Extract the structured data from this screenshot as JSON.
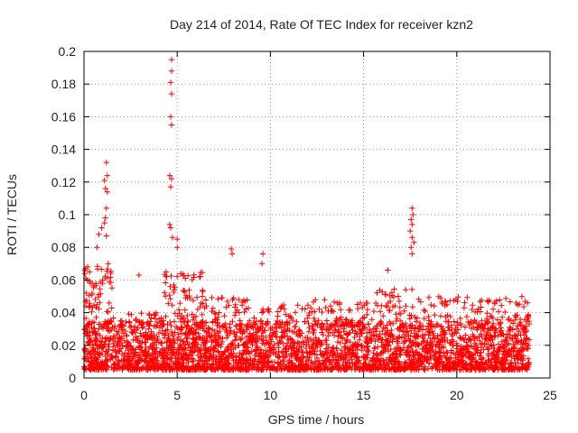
{
  "chart_data": {
    "type": "scatter",
    "title": "Day 214 of 2014, Rate Of TEC Index for receiver kzn2",
    "xlabel": "GPS time / hours",
    "ylabel": "ROTI / TECUs",
    "xlim": [
      0,
      25
    ],
    "ylim": [
      0,
      0.2
    ],
    "xticks": [
      0,
      5,
      10,
      15,
      20,
      25
    ],
    "yticks": [
      0,
      0.02,
      0.04,
      0.06,
      0.08,
      0.1,
      0.12,
      0.14,
      0.16,
      0.18,
      0.2
    ],
    "xtick_labels": [
      "0",
      "5",
      "10",
      "15",
      "20",
      "25"
    ],
    "ytick_labels": [
      "0",
      "0.02",
      "0.04",
      "0.06",
      "0.08",
      "0.1",
      "0.12",
      "0.14",
      "0.16",
      "0.18",
      "0.2"
    ],
    "grid": true,
    "marker": "+",
    "color": "#ff0000",
    "data_range_x": [
      0,
      23.9
    ],
    "background_band": [
      0.005,
      0.035
    ],
    "notable_points": [
      {
        "x": 4.7,
        "y": 0.195
      },
      {
        "x": 4.7,
        "y": 0.188
      },
      {
        "x": 4.65,
        "y": 0.181
      },
      {
        "x": 4.7,
        "y": 0.174
      },
      {
        "x": 4.65,
        "y": 0.16
      },
      {
        "x": 4.7,
        "y": 0.155
      },
      {
        "x": 4.6,
        "y": 0.124
      },
      {
        "x": 4.7,
        "y": 0.122
      },
      {
        "x": 4.65,
        "y": 0.117
      },
      {
        "x": 4.6,
        "y": 0.094
      },
      {
        "x": 4.65,
        "y": 0.092
      },
      {
        "x": 4.75,
        "y": 0.086
      },
      {
        "x": 1.2,
        "y": 0.132
      },
      {
        "x": 1.25,
        "y": 0.124
      },
      {
        "x": 1.1,
        "y": 0.121
      },
      {
        "x": 1.15,
        "y": 0.116
      },
      {
        "x": 1.25,
        "y": 0.114
      },
      {
        "x": 1.2,
        "y": 0.104
      },
      {
        "x": 1.15,
        "y": 0.098
      },
      {
        "x": 1.1,
        "y": 0.095
      },
      {
        "x": 0.95,
        "y": 0.092
      },
      {
        "x": 0.8,
        "y": 0.088
      },
      {
        "x": 1.2,
        "y": 0.087
      },
      {
        "x": 0.7,
        "y": 0.08
      },
      {
        "x": 17.6,
        "y": 0.104
      },
      {
        "x": 17.65,
        "y": 0.1
      },
      {
        "x": 17.55,
        "y": 0.097
      },
      {
        "x": 17.6,
        "y": 0.094
      },
      {
        "x": 17.5,
        "y": 0.09
      },
      {
        "x": 17.6,
        "y": 0.086
      },
      {
        "x": 17.7,
        "y": 0.083
      },
      {
        "x": 17.55,
        "y": 0.08
      },
      {
        "x": 17.6,
        "y": 0.076
      },
      {
        "x": 5.0,
        "y": 0.085
      },
      {
        "x": 5.0,
        "y": 0.08
      },
      {
        "x": 7.9,
        "y": 0.079
      },
      {
        "x": 7.95,
        "y": 0.076
      },
      {
        "x": 9.6,
        "y": 0.076
      },
      {
        "x": 9.55,
        "y": 0.07
      },
      {
        "x": 2.95,
        "y": 0.063
      },
      {
        "x": 16.3,
        "y": 0.066
      },
      {
        "x": 0.2,
        "y": 0.068
      },
      {
        "x": 0.3,
        "y": 0.065
      },
      {
        "x": 0.1,
        "y": 0.061
      },
      {
        "x": 1.3,
        "y": 0.07
      }
    ],
    "dense_clusters": [
      {
        "x_from": 0.0,
        "x_to": 1.5,
        "y_from": 0.005,
        "y_to": 0.07,
        "count": 180
      },
      {
        "x_from": 1.5,
        "x_to": 4.3,
        "y_from": 0.005,
        "y_to": 0.04,
        "count": 220
      },
      {
        "x_from": 4.3,
        "x_to": 6.5,
        "y_from": 0.005,
        "y_to": 0.065,
        "count": 260
      },
      {
        "x_from": 6.5,
        "x_to": 9.0,
        "y_from": 0.005,
        "y_to": 0.05,
        "count": 230
      },
      {
        "x_from": 9.0,
        "x_to": 12.0,
        "y_from": 0.005,
        "y_to": 0.045,
        "count": 240
      },
      {
        "x_from": 12.0,
        "x_to": 15.5,
        "y_from": 0.005,
        "y_to": 0.048,
        "count": 260
      },
      {
        "x_from": 15.5,
        "x_to": 18.5,
        "y_from": 0.005,
        "y_to": 0.055,
        "count": 260
      },
      {
        "x_from": 18.5,
        "x_to": 21.5,
        "y_from": 0.005,
        "y_to": 0.05,
        "count": 240
      },
      {
        "x_from": 21.5,
        "x_to": 23.9,
        "y_from": 0.005,
        "y_to": 0.05,
        "count": 220
      }
    ]
  }
}
